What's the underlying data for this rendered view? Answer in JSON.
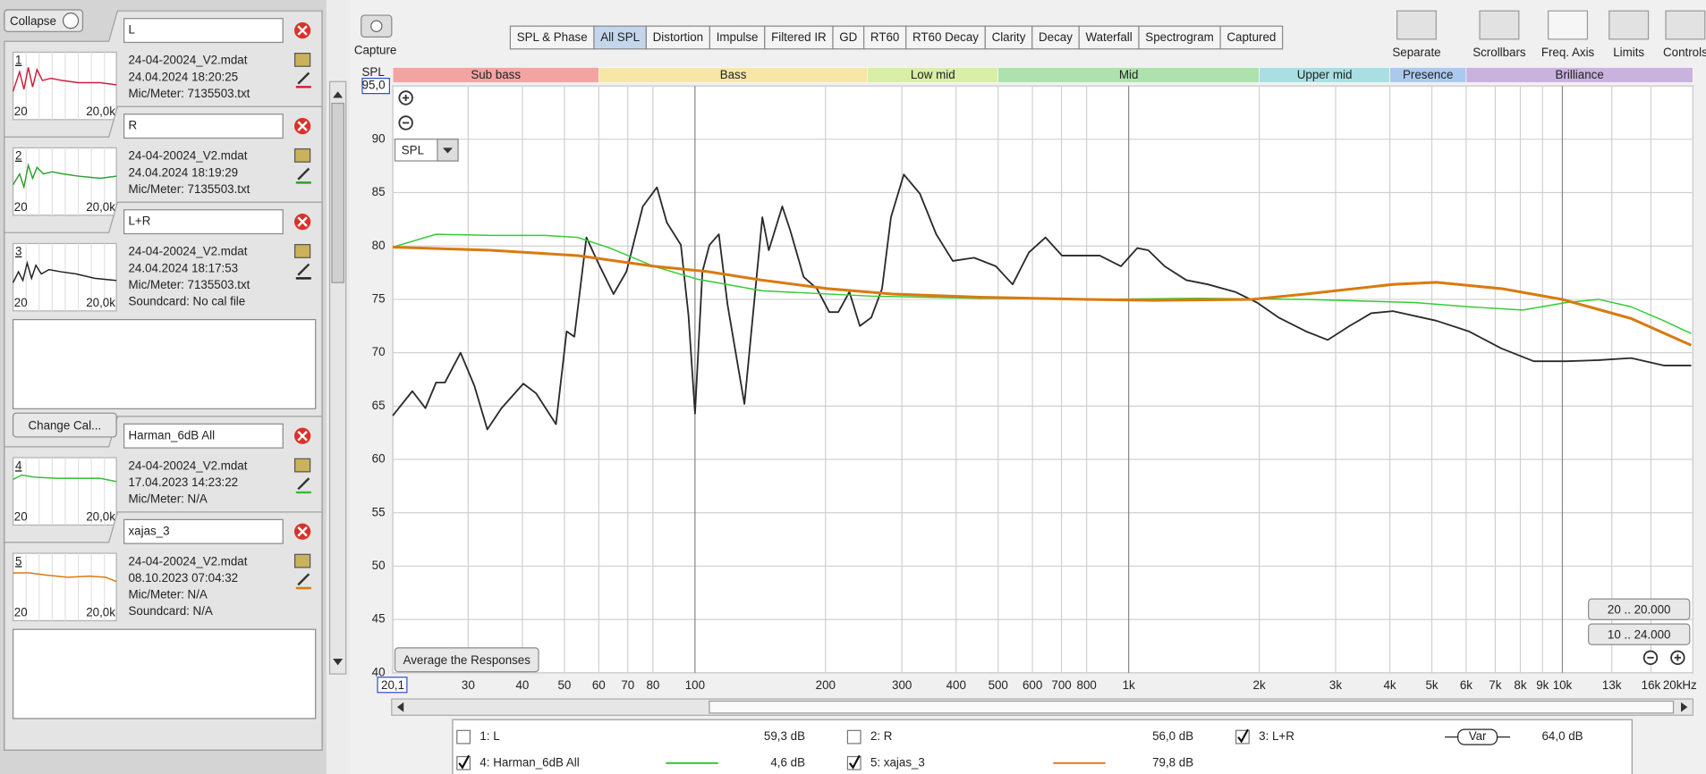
{
  "toolbar": {
    "capture": "Capture",
    "tabs": [
      "SPL & Phase",
      "All SPL",
      "Distortion",
      "Impulse",
      "Filtered IR",
      "GD",
      "RT60",
      "RT60 Decay",
      "Clarity",
      "Decay",
      "Waterfall",
      "Spectrogram",
      "Captured"
    ],
    "tools": [
      "Separate",
      "Scrollbars",
      "Freq. Axis",
      "Limits",
      "Controls"
    ]
  },
  "sidebar": {
    "collapse": "Collapse",
    "change_cal": "Change Cal...",
    "measurements": [
      {
        "index": "1",
        "name": "L",
        "color": "#d01c3c",
        "lines": [
          "24-04-20024_V2.mdat",
          "24.04.2024 18:20:25",
          "Mic/Meter: 7135503.txt"
        ],
        "thumb_axis": [
          "20",
          "20,0k"
        ]
      },
      {
        "index": "2",
        "name": "R",
        "color": "#2ea02e",
        "lines": [
          "24-04-20024_V2.mdat",
          "24.04.2024 18:19:29",
          "Mic/Meter: 7135503.txt"
        ],
        "thumb_axis": [
          "20",
          "20,0k"
        ]
      },
      {
        "index": "3",
        "name": "L+R",
        "color": "#222222",
        "lines": [
          "24-04-20024_V2.mdat",
          "24.04.2024 18:17:53",
          "Mic/Meter: 7135503.txt",
          "Soundcard: No cal file"
        ],
        "thumb_axis": [
          "20",
          "20,0k"
        ]
      },
      {
        "index": "4",
        "name": "Harman_6dB All",
        "color": "#33bb33",
        "lines": [
          "24-04-20024_V2.mdat",
          "17.04.2023 14:23:22",
          "Mic/Meter: N/A"
        ],
        "thumb_axis": [
          "20",
          "20,0k"
        ]
      },
      {
        "index": "5",
        "name": "xajas_3",
        "color": "#d97a10",
        "lines": [
          "24-04-20024_V2.mdat",
          "08.10.2023 07:04:32",
          "Mic/Meter: N/A",
          "Soundcard: N/A"
        ],
        "thumb_axis": [
          "20",
          "20,0k"
        ]
      }
    ]
  },
  "controls": {
    "spl_select": "SPL",
    "average": "Average the Responses",
    "ranges": [
      "20 .. 20.000",
      "10 .. 24.000"
    ]
  },
  "chart_data": {
    "type": "line",
    "ylabel": "SPL",
    "xlog": true,
    "grid": true,
    "xlim": [
      20.1,
      20000
    ],
    "ylim": [
      40,
      95
    ],
    "xticks": [
      {
        "value": 20.1,
        "label": "20,1"
      },
      30,
      40,
      50,
      60,
      70,
      80,
      100,
      200,
      300,
      400,
      500,
      600,
      700,
      800,
      {
        "value": 1000,
        "label": "1k"
      },
      {
        "value": 2000,
        "label": "2k"
      },
      {
        "value": 3000,
        "label": "3k"
      },
      {
        "value": 4000,
        "label": "4k"
      },
      {
        "value": 5000,
        "label": "5k"
      },
      {
        "value": 6000,
        "label": "6k"
      },
      {
        "value": 7000,
        "label": "7k"
      },
      {
        "value": 8000,
        "label": "8k"
      },
      {
        "value": 9000,
        "label": "9k"
      },
      {
        "value": 10000,
        "label": "10k"
      },
      {
        "value": 13000,
        "label": "13k"
      },
      {
        "value": 16000,
        "label": "16k"
      },
      {
        "value": 20000,
        "label": "20kHz"
      }
    ],
    "yticks": [
      40,
      45,
      50,
      55,
      60,
      65,
      70,
      75,
      80,
      85,
      90,
      {
        "value": 95,
        "label": "95,0"
      }
    ],
    "bands": [
      {
        "name": "Sub bass",
        "from": 20.1,
        "to": 60,
        "color": "#f4a3a3"
      },
      {
        "name": "Bass",
        "from": 60,
        "to": 250,
        "color": "#f6e7a6"
      },
      {
        "name": "Low mid",
        "from": 250,
        "to": 500,
        "color": "#d9eea6"
      },
      {
        "name": "Mid",
        "from": 500,
        "to": 2000,
        "color": "#ade2ad"
      },
      {
        "name": "Upper mid",
        "from": 2000,
        "to": 4000,
        "color": "#a9dfe2"
      },
      {
        "name": "Presence",
        "from": 4000,
        "to": 6000,
        "color": "#abc9ee"
      },
      {
        "name": "Brilliance",
        "from": 6000,
        "to": 20000,
        "color": "#c9b3de"
      }
    ],
    "series": [
      {
        "name": "L+R",
        "color": "#2a2a2a",
        "line_width": 1.5,
        "x": [
          20.1,
          22.3,
          23.9,
          25.3,
          26.5,
          28.8,
          31,
          33.2,
          35.8,
          40.2,
          43,
          47.8,
          50.6,
          52.7,
          56.2,
          59.5,
          64.9,
          69.5,
          75.8,
          81.7,
          86.1,
          92.8,
          96.6,
          100,
          104,
          108,
          113.5,
          118.9,
          130,
          136,
          143,
          148,
          159,
          166,
          178,
          191,
          204,
          214,
          227,
          240,
          255,
          270,
          283,
          303,
          330,
          360,
          393,
          440,
          494,
          540,
          589,
          643,
          702,
          786,
          857,
          960,
          1047,
          1110,
          1210,
          1358,
          1523,
          1759,
          1976,
          2217,
          2562,
          2877,
          3229,
          3624,
          4069,
          5119,
          6085,
          7230,
          8591,
          10210,
          12130,
          14410,
          17120,
          19820
        ],
        "values": [
          64.1,
          66.4,
          64.8,
          67.2,
          67.2,
          70.0,
          66.9,
          62.8,
          64.8,
          67.1,
          66.2,
          63.3,
          72.0,
          71.5,
          80.8,
          78.6,
          75.5,
          77.6,
          83.7,
          85.5,
          82.2,
          80.1,
          73.5,
          64.3,
          77.6,
          80.1,
          81.1,
          74.5,
          65.2,
          73.5,
          82.7,
          79.6,
          83.7,
          81.4,
          77.1,
          76.0,
          73.8,
          73.8,
          75.7,
          72.5,
          73.3,
          76.0,
          82.7,
          86.7,
          84.9,
          81.1,
          78.6,
          78.9,
          78.1,
          76.4,
          79.4,
          80.8,
          79.1,
          79.1,
          79.1,
          78.1,
          79.8,
          79.6,
          78.1,
          76.8,
          76.4,
          75.7,
          74.7,
          73.3,
          72.0,
          71.2,
          72.5,
          73.7,
          73.9,
          73.0,
          72.0,
          70.4,
          69.2,
          69.2,
          69.3,
          69.5,
          68.8,
          68.8
        ]
      },
      {
        "name": "Harman_6dB All",
        "color": "#33cc33",
        "line_width": 1.2,
        "x": [
          20.1,
          25.3,
          33.8,
          45.1,
          53.7,
          63.7,
          80.3,
          101,
          143,
          255,
          453,
          808,
          1440,
          2560,
          4560,
          6085,
          8100,
          10210,
          12130,
          14410,
          17120,
          19820
        ],
        "values": [
          79.9,
          81.1,
          81.0,
          81.0,
          80.8,
          79.8,
          78.1,
          76.9,
          75.8,
          75.3,
          75.1,
          75.0,
          75.1,
          75.0,
          74.7,
          74.3,
          74.0,
          74.7,
          75.0,
          74.3,
          73.0,
          71.8
        ]
      },
      {
        "name": "xajas_3",
        "color": "#d97a10",
        "line_width": 2.5,
        "x": [
          20.1,
          33.8,
          53.7,
          80.3,
          107,
          143,
          202,
          286,
          453,
          808,
          1140,
          1920,
          2560,
          4069,
          5119,
          7230,
          10000,
          14410,
          19820
        ],
        "values": [
          79.9,
          79.6,
          79.1,
          78.1,
          77.6,
          76.8,
          76.0,
          75.5,
          75.2,
          75.0,
          74.9,
          75.0,
          75.5,
          76.4,
          76.6,
          76.0,
          75.0,
          73.2,
          70.7
        ]
      }
    ]
  },
  "legend": [
    {
      "label": "1: L",
      "level": "59,3 dB",
      "checked": false,
      "color": "#d01c3c"
    },
    {
      "label": "2: R",
      "level": "56,0 dB",
      "checked": false,
      "color": "#2ea02e"
    },
    {
      "label": "3: L+R",
      "sample": "Var",
      "level": "64,0 dB",
      "checked": true,
      "color": "#222222"
    },
    {
      "label": "4: Harman_6dB All",
      "level": "4,6 dB",
      "checked": true,
      "color": "#33bb33"
    },
    {
      "label": "5: xajas_3",
      "level": "79,8 dB",
      "checked": true,
      "color": "#d97a10"
    }
  ]
}
